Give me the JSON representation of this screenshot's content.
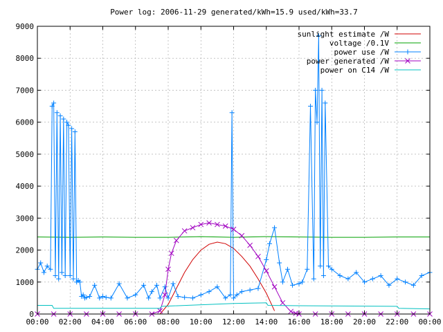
{
  "chart_data": {
    "type": "line",
    "title": "Power log: 2006-11-29 generated/kWh=15.9 used/kWh=33.7",
    "xlabel": "",
    "ylabel": "",
    "xlim": [
      0,
      24
    ],
    "ylim": [
      0,
      9000
    ],
    "grid": true,
    "legend_position": "top-right",
    "x_tick_labels": [
      "00:00",
      "02:00",
      "04:00",
      "06:00",
      "08:00",
      "10:00",
      "12:00",
      "14:00",
      "16:00",
      "18:00",
      "20:00",
      "22:00",
      "00:00"
    ],
    "y_tick_labels": [
      "0",
      "1000",
      "2000",
      "3000",
      "4000",
      "5000",
      "6000",
      "7000",
      "8000",
      "9000"
    ],
    "series": [
      {
        "name": "sunlight estimate /W",
        "color": "#d00000",
        "marker": "none",
        "x": [
          7.5,
          8.0,
          8.5,
          9.0,
          9.5,
          10.0,
          10.5,
          11.0,
          11.5,
          12.0,
          12.5,
          13.0,
          13.5,
          14.0,
          14.5
        ],
        "y": [
          0,
          300,
          800,
          1300,
          1700,
          2000,
          2180,
          2250,
          2200,
          2050,
          1800,
          1500,
          1100,
          650,
          100
        ]
      },
      {
        "name": "voltage /0.1V",
        "color": "#00a000",
        "marker": "none",
        "x": [
          0,
          2,
          4,
          6,
          8,
          10,
          12,
          14,
          16,
          18,
          20,
          22,
          24
        ],
        "y": [
          2410,
          2400,
          2410,
          2400,
          2400,
          2420,
          2400,
          2420,
          2410,
          2400,
          2400,
          2410,
          2410
        ]
      },
      {
        "name": "power use /W",
        "color": "#0080ff",
        "marker": "plus",
        "x": [
          0,
          0.2,
          0.4,
          0.6,
          0.8,
          0.9,
          1.0,
          1.1,
          1.2,
          1.3,
          1.4,
          1.5,
          1.6,
          1.7,
          1.8,
          1.9,
          2.0,
          2.1,
          2.2,
          2.3,
          2.4,
          2.5,
          2.6,
          2.7,
          2.8,
          2.9,
          3.0,
          3.2,
          3.5,
          3.8,
          4.0,
          4.2,
          4.5,
          5.0,
          5.5,
          6.0,
          6.5,
          6.8,
          7.0,
          7.3,
          7.5,
          7.8,
          8.0,
          8.3,
          8.6,
          9.0,
          9.5,
          10.0,
          10.5,
          11.0,
          11.5,
          11.8,
          11.9,
          12.0,
          12.2,
          12.5,
          13.0,
          13.5,
          14.0,
          14.2,
          14.5,
          14.8,
          15.0,
          15.3,
          15.6,
          16.0,
          16.2,
          16.5,
          16.7,
          16.9,
          17.0,
          17.1,
          17.2,
          17.3,
          17.4,
          17.5,
          17.6,
          17.8,
          18.0,
          18.5,
          19.0,
          19.5,
          20.0,
          20.5,
          21.0,
          21.5,
          22.0,
          22.5,
          23.0,
          23.5,
          24.0
        ],
        "y": [
          1400,
          1600,
          1300,
          1500,
          1400,
          6500,
          6600,
          1200,
          6300,
          1100,
          6200,
          1300,
          6100,
          1200,
          6000,
          5900,
          1200,
          5800,
          1100,
          5700,
          1000,
          1050,
          1000,
          550,
          600,
          500,
          520,
          550,
          900,
          500,
          550,
          520,
          500,
          950,
          500,
          600,
          900,
          500,
          700,
          900,
          500,
          850,
          500,
          950,
          550,
          520,
          500,
          600,
          700,
          850,
          500,
          600,
          6300,
          500,
          600,
          700,
          750,
          800,
          1700,
          2200,
          2700,
          1600,
          1000,
          1400,
          900,
          950,
          1000,
          1400,
          6500,
          1100,
          7000,
          6000,
          8700,
          1500,
          7000,
          1200,
          6600,
          1500,
          1400,
          1200,
          1100,
          1300,
          1000,
          1100,
          1200,
          900,
          1100,
          1000,
          900,
          1200,
          1300
        ]
      },
      {
        "name": "power generated /W",
        "color": "#a000c0",
        "marker": "cross",
        "x": [
          0,
          1,
          2,
          3,
          4,
          5,
          6,
          7,
          7.5,
          7.8,
          8.0,
          8.2,
          8.5,
          9.0,
          9.5,
          10.0,
          10.5,
          11.0,
          11.5,
          12.0,
          12.5,
          13.0,
          13.5,
          14.0,
          14.5,
          15.0,
          15.5,
          15.8,
          16.0,
          17,
          18,
          19,
          20,
          21,
          22,
          23,
          24
        ],
        "y": [
          0,
          0,
          0,
          0,
          0,
          0,
          0,
          0,
          100,
          600,
          1400,
          1900,
          2300,
          2600,
          2700,
          2800,
          2850,
          2800,
          2750,
          2650,
          2450,
          2150,
          1800,
          1350,
          850,
          350,
          80,
          20,
          0,
          0,
          0,
          0,
          0,
          0,
          0,
          0,
          0
        ]
      },
      {
        "name": "power on C14 /W",
        "color": "#00c0c0",
        "marker": "none",
        "x": [
          0,
          0.9,
          1.0,
          7.5,
          7.6,
          12.0,
          13.0,
          14.0,
          14.1,
          16.0,
          22.0,
          22.1,
          24.0
        ],
        "y": [
          270,
          270,
          180,
          180,
          240,
          330,
          340,
          350,
          270,
          260,
          240,
          180,
          160
        ]
      }
    ]
  }
}
